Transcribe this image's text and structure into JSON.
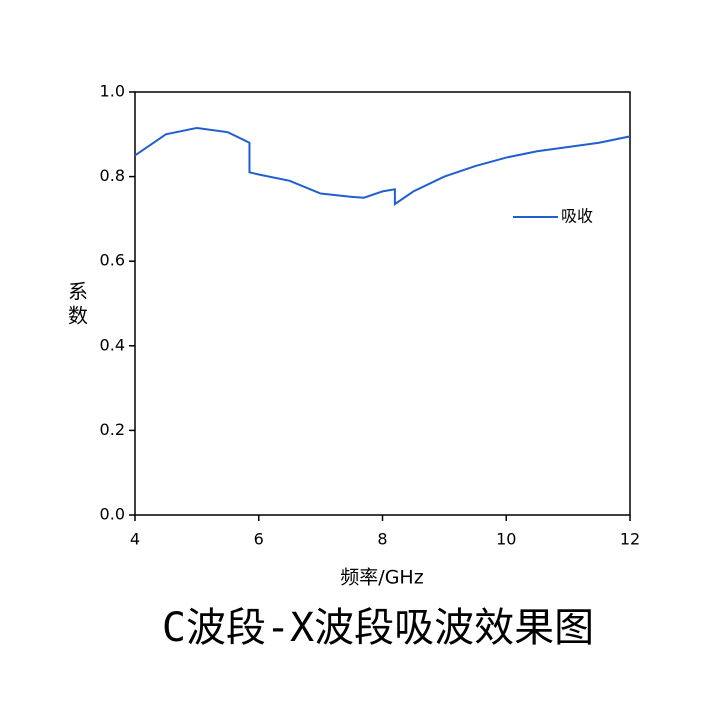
{
  "chart_data": {
    "type": "line",
    "title": "C波段-X波段吸波效果图",
    "xlabel": "频率/GHz",
    "ylabel": "系数",
    "x": [
      4,
      4.5,
      5.0,
      5.5,
      5.85,
      5.85,
      6.0,
      6.5,
      7.0,
      7.5,
      7.7,
      8.0,
      8.2,
      8.2,
      8.5,
      9.0,
      9.5,
      10.0,
      10.5,
      11.0,
      11.5,
      12.0
    ],
    "series": [
      {
        "name": "吸收",
        "color": "#1f5fd1",
        "values": [
          0.85,
          0.9,
          0.915,
          0.905,
          0.88,
          0.81,
          0.805,
          0.79,
          0.76,
          0.752,
          0.75,
          0.765,
          0.77,
          0.735,
          0.765,
          0.8,
          0.825,
          0.845,
          0.86,
          0.87,
          0.88,
          0.895
        ]
      }
    ],
    "xlim": [
      4,
      12
    ],
    "xticks": [
      4,
      6,
      8,
      10,
      12
    ],
    "ylim": [
      0,
      1
    ],
    "yticks": [
      {
        "value": 0,
        "label": "0.0"
      },
      0.2,
      0.4,
      0.6,
      0.8,
      {
        "value": 1,
        "label": "1.0"
      }
    ],
    "legend": "right"
  }
}
